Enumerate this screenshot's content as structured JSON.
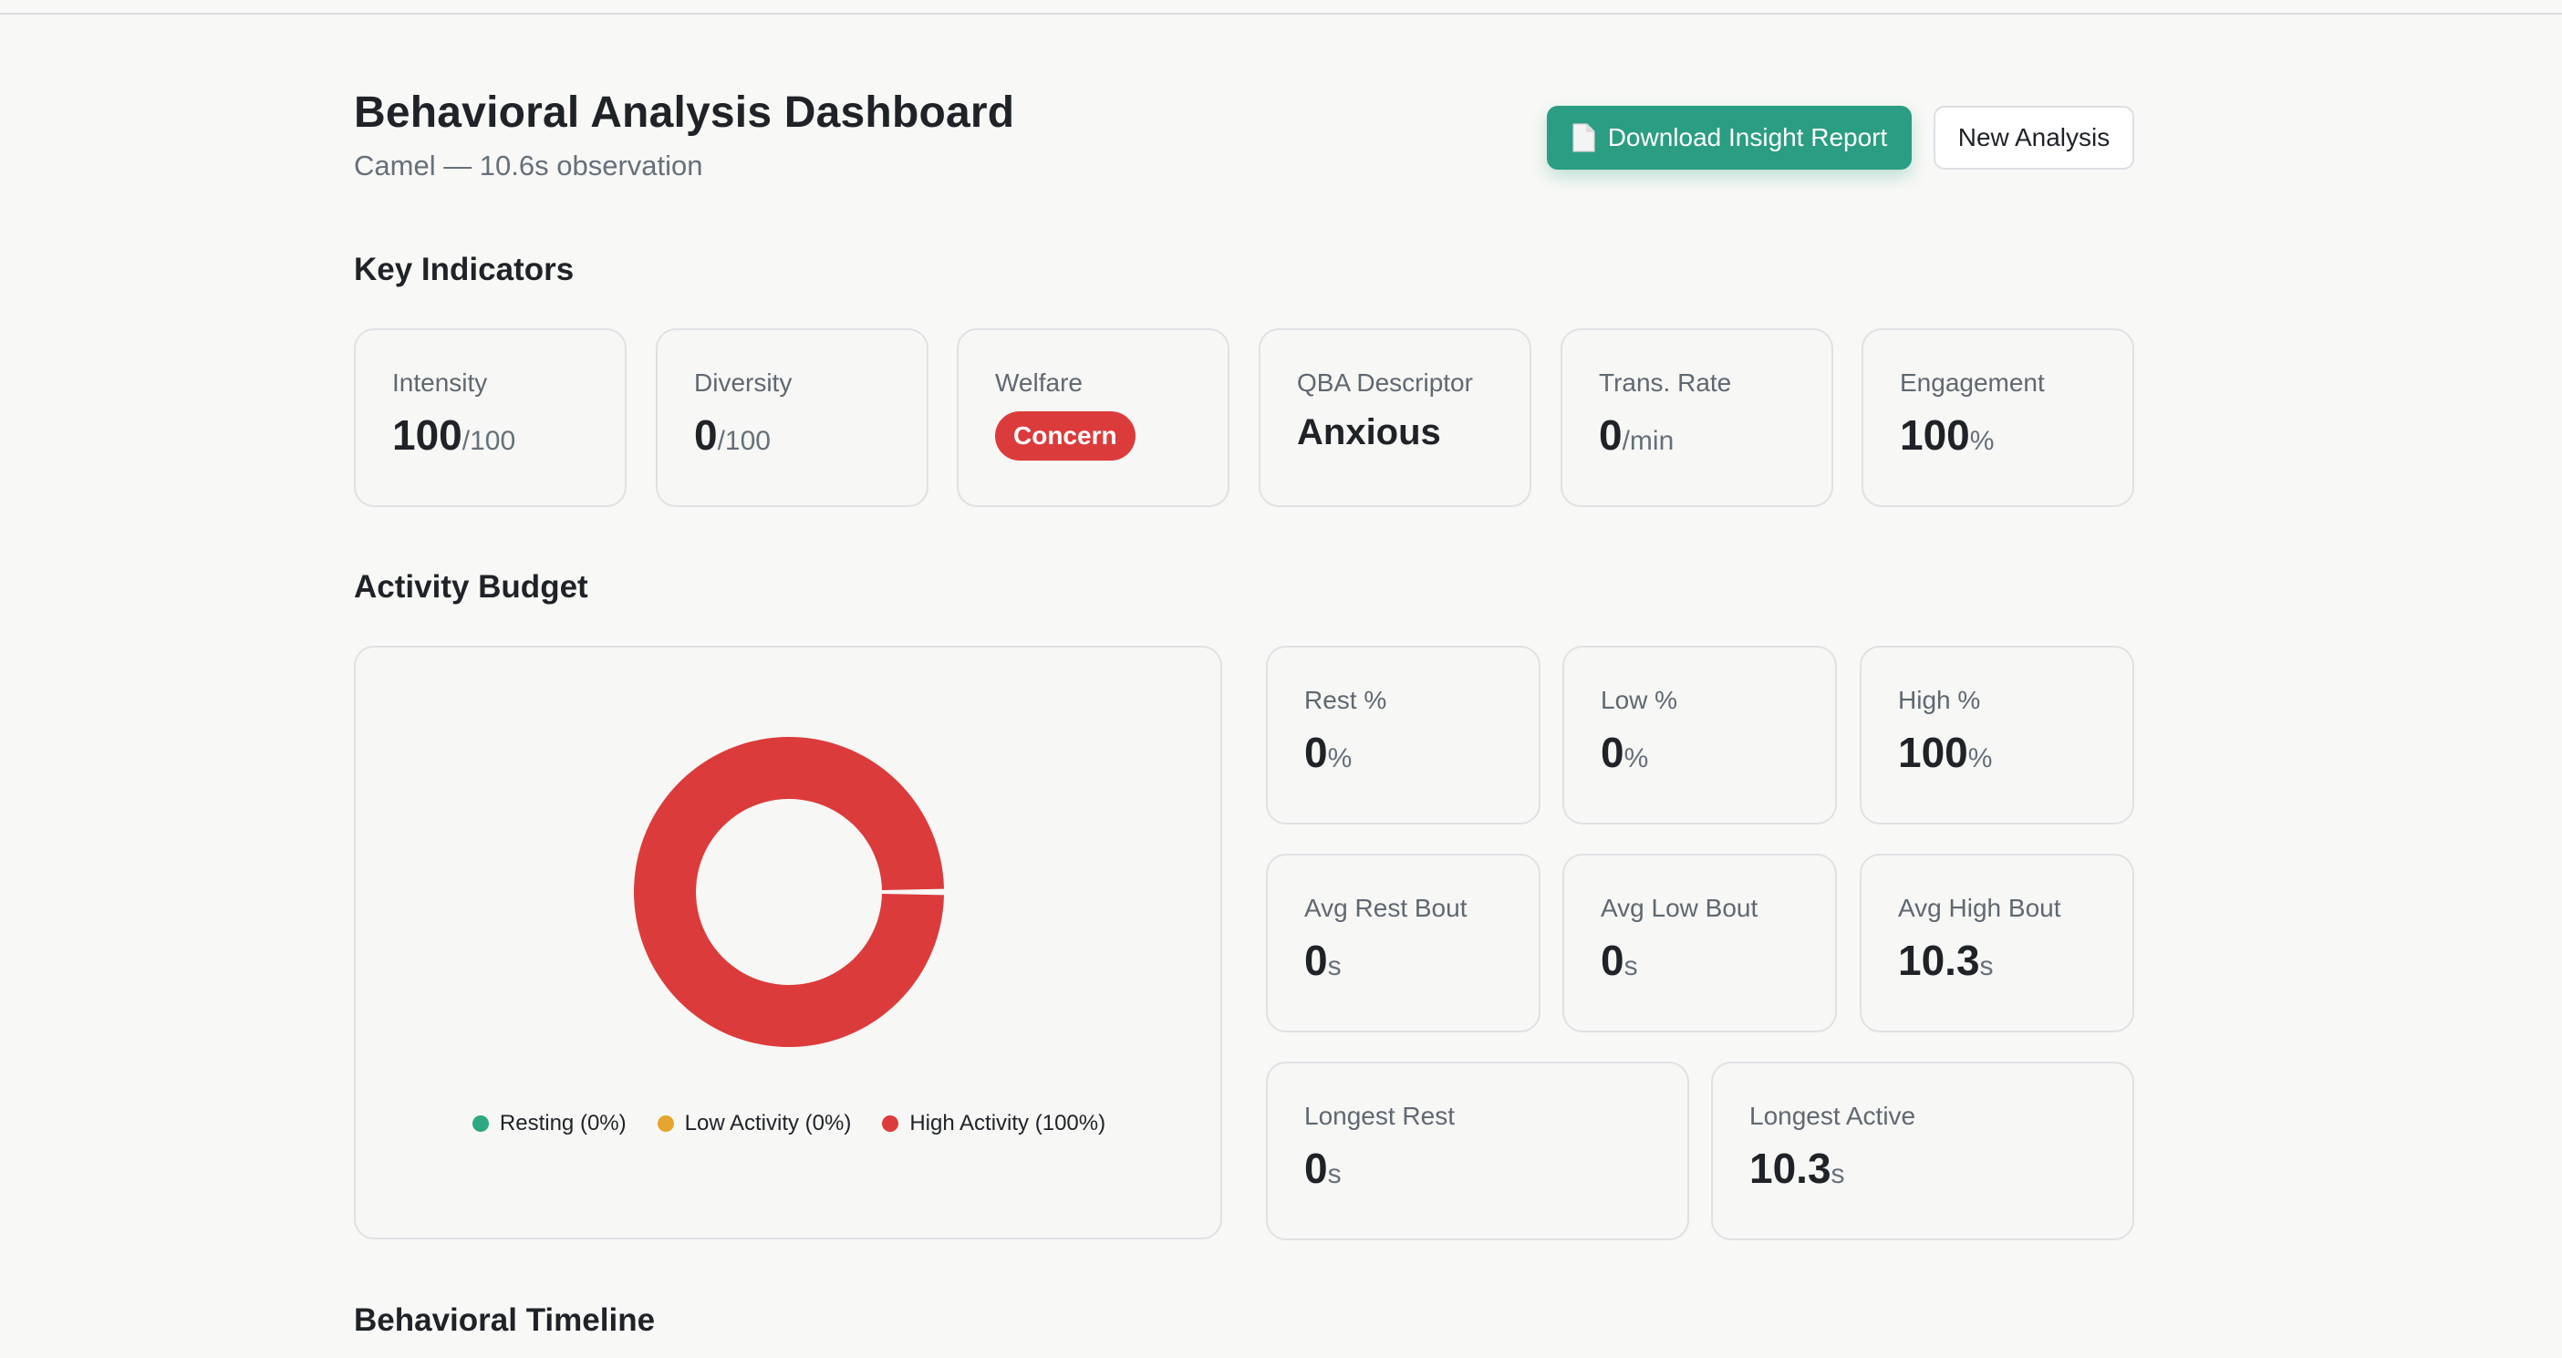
{
  "header": {
    "title": "Behavioral Analysis Dashboard",
    "subtitle": "Camel — 10.6s observation",
    "download_label": "Download Insight Report",
    "new_analysis_label": "New Analysis"
  },
  "sections": {
    "key_indicators": "Key Indicators",
    "activity_budget": "Activity Budget",
    "behavioral_timeline": "Behavioral Timeline"
  },
  "indicators": {
    "intensity": {
      "label": "Intensity",
      "value": "100",
      "unit": "/100"
    },
    "diversity": {
      "label": "Diversity",
      "value": "0",
      "unit": "/100"
    },
    "welfare": {
      "label": "Welfare",
      "badge": "Concern"
    },
    "qba": {
      "label": "QBA Descriptor",
      "value": "Anxious"
    },
    "trans_rate": {
      "label": "Trans. Rate",
      "value": "0",
      "unit": "/min"
    },
    "engagement": {
      "label": "Engagement",
      "value": "100",
      "unit": "%"
    }
  },
  "budget_stats": {
    "rest_pct": {
      "label": "Rest %",
      "value": "0",
      "unit": "%"
    },
    "low_pct": {
      "label": "Low %",
      "value": "0",
      "unit": "%"
    },
    "high_pct": {
      "label": "High %",
      "value": "100",
      "unit": "%"
    },
    "avg_rest_bout": {
      "label": "Avg Rest Bout",
      "value": "0",
      "unit": "s"
    },
    "avg_low_bout": {
      "label": "Avg Low Bout",
      "value": "0",
      "unit": "s"
    },
    "avg_high_bout": {
      "label": "Avg High Bout",
      "value": "10.3",
      "unit": "s"
    },
    "longest_rest": {
      "label": "Longest Rest",
      "value": "0",
      "unit": "s"
    },
    "longest_active": {
      "label": "Longest Active",
      "value": "10.3",
      "unit": "s"
    }
  },
  "colors": {
    "accent": "#2a9d82",
    "concern": "#dc3b3b",
    "resting": "#2fa882",
    "low_activity": "#e5a52f",
    "high_activity": "#dc3b3b"
  },
  "chart_data": {
    "type": "pie",
    "title": "",
    "categories": [
      "Resting",
      "Low Activity",
      "High Activity"
    ],
    "values": [
      0,
      0,
      100
    ],
    "legend": [
      "Resting (0%)",
      "Low Activity (0%)",
      "High Activity (100%)"
    ],
    "legend_position": "bottom"
  }
}
